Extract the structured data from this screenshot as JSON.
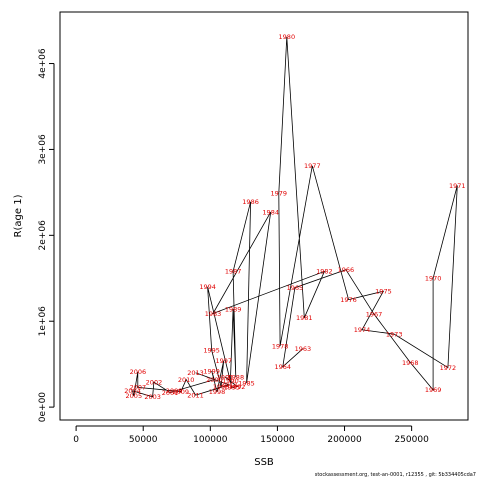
{
  "chart_data": {
    "type": "scatter",
    "xlabel": "SSB",
    "ylabel": "R(age 1)",
    "xlim": [
      -12000,
      292000
    ],
    "ylim": [
      -150000,
      4600000
    ],
    "x_ticks": [
      0,
      50000,
      100000,
      150000,
      200000,
      250000
    ],
    "x_tick_labels": [
      "0",
      "50000",
      "100000",
      "150000",
      "200000",
      "250000"
    ],
    "y_ticks": [
      0,
      1000000,
      2000000,
      3000000,
      4000000
    ],
    "y_tick_labels": [
      "0e+00",
      "1e+06",
      "2e+06",
      "3e+06",
      "4e+06"
    ],
    "grid": false,
    "connect_points": true,
    "label_color": "#e00000",
    "line_color": "#000000",
    "points": [
      {
        "year": "1963",
        "x": 169000,
        "y": 680000
      },
      {
        "year": "1964",
        "x": 154000,
        "y": 470000
      },
      {
        "year": "1965",
        "x": 163000,
        "y": 1390000
      },
      {
        "year": "1966",
        "x": 201000,
        "y": 1600000
      },
      {
        "year": "1967",
        "x": 222000,
        "y": 1080000
      },
      {
        "year": "1968",
        "x": 249000,
        "y": 520000
      },
      {
        "year": "1969",
        "x": 266000,
        "y": 200000
      },
      {
        "year": "1970",
        "x": 266000,
        "y": 1500000
      },
      {
        "year": "1971",
        "x": 284000,
        "y": 2580000
      },
      {
        "year": "1972",
        "x": 277000,
        "y": 460000
      },
      {
        "year": "1973",
        "x": 237000,
        "y": 850000
      },
      {
        "year": "1974",
        "x": 213000,
        "y": 900000
      },
      {
        "year": "1975",
        "x": 229000,
        "y": 1350000
      },
      {
        "year": "1976",
        "x": 203000,
        "y": 1250000
      },
      {
        "year": "1977",
        "x": 176000,
        "y": 2810000
      },
      {
        "year": "1978",
        "x": 152000,
        "y": 710000
      },
      {
        "year": "1979",
        "x": 151000,
        "y": 2490000
      },
      {
        "year": "1980",
        "x": 157000,
        "y": 4310000
      },
      {
        "year": "1981",
        "x": 170000,
        "y": 1040000
      },
      {
        "year": "1982",
        "x": 185000,
        "y": 1580000
      },
      {
        "year": "1983",
        "x": 102000,
        "y": 1090000
      },
      {
        "year": "1984",
        "x": 145000,
        "y": 2270000
      },
      {
        "year": "1985",
        "x": 127000,
        "y": 280000
      },
      {
        "year": "1986",
        "x": 130000,
        "y": 2390000
      },
      {
        "year": "1987",
        "x": 117000,
        "y": 1580000
      },
      {
        "year": "1988",
        "x": 119000,
        "y": 350000
      },
      {
        "year": "1989",
        "x": 117000,
        "y": 1140000
      },
      {
        "year": "1990",
        "x": 115000,
        "y": 310000
      },
      {
        "year": "1991",
        "x": 111000,
        "y": 350000
      },
      {
        "year": "1992",
        "x": 120000,
        "y": 240000
      },
      {
        "year": "1993",
        "x": 116000,
        "y": 230000
      },
      {
        "year": "1994",
        "x": 98000,
        "y": 1400000
      },
      {
        "year": "1995",
        "x": 101000,
        "y": 660000
      },
      {
        "year": "1996",
        "x": 108000,
        "y": 240000
      },
      {
        "year": "1997",
        "x": 110000,
        "y": 540000
      },
      {
        "year": "1998",
        "x": 105000,
        "y": 180000
      },
      {
        "year": "1999",
        "x": 101000,
        "y": 420000
      },
      {
        "year": "2000",
        "x": 103000,
        "y": 320000
      },
      {
        "year": "2001",
        "x": 70000,
        "y": 170000
      },
      {
        "year": "2002",
        "x": 58000,
        "y": 290000
      },
      {
        "year": "2003",
        "x": 57000,
        "y": 120000
      },
      {
        "year": "2004",
        "x": 42000,
        "y": 190000
      },
      {
        "year": "2005",
        "x": 43000,
        "y": 130000
      },
      {
        "year": "2006",
        "x": 46000,
        "y": 410000
      },
      {
        "year": "2007",
        "x": 46000,
        "y": 230000
      },
      {
        "year": "2008",
        "x": 73000,
        "y": 190000
      },
      {
        "year": "2009",
        "x": 78000,
        "y": 180000
      },
      {
        "year": "2010",
        "x": 82000,
        "y": 320000
      },
      {
        "year": "2011",
        "x": 89000,
        "y": 140000
      },
      {
        "year": "2012",
        "x": 114000,
        "y": 260000
      },
      {
        "year": "2013",
        "x": 89000,
        "y": 400000
      }
    ]
  },
  "footer_text": "stockassessment.org, test-an-0001, r12355 ,  git: 5b334405cda7"
}
